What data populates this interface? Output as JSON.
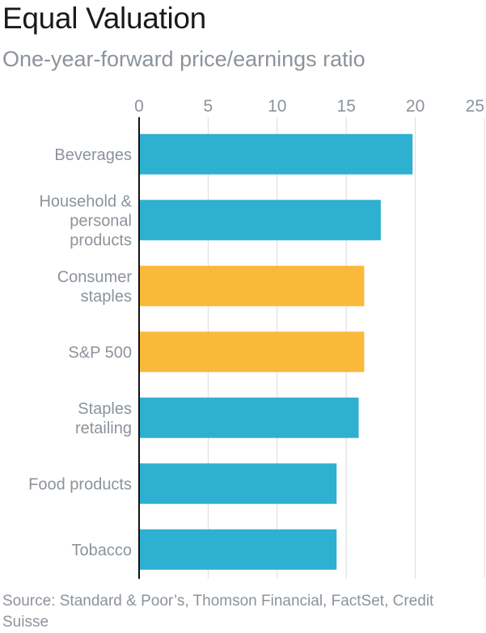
{
  "title": "Equal Valuation",
  "subtitle": "One-year-forward price/earnings ratio",
  "source": "Source: Standard & Poor’s, Thomson Financial, FactSet, Credit Suisse",
  "chart_data": {
    "type": "bar",
    "orientation": "horizontal",
    "title": "Equal Valuation",
    "subtitle": "One-year-forward price/earnings ratio",
    "xlabel": "",
    "ylabel": "",
    "xlim": [
      0,
      25
    ],
    "ticks": [
      0,
      5,
      10,
      15,
      20,
      25
    ],
    "tick_labels": [
      "0",
      "5",
      "10",
      "15",
      "20",
      "25"
    ],
    "grid": true,
    "categories": [
      [
        "Beverages"
      ],
      [
        "Household &",
        "personal",
        "products"
      ],
      [
        "Consumer",
        "staples"
      ],
      [
        "S&P 500"
      ],
      [
        "Staples",
        "retailing"
      ],
      [
        "Food products"
      ],
      [
        "Tobacco"
      ]
    ],
    "values": [
      19.8,
      17.5,
      16.3,
      16.3,
      15.9,
      14.3,
      14.3
    ],
    "highlight": [
      false,
      false,
      true,
      true,
      false,
      false,
      false
    ],
    "colors": {
      "default": "#2eb0d1",
      "highlight": "#fbb93b",
      "grid": "#dcdcdc",
      "axis": "#111111",
      "text": "#8c939b"
    }
  }
}
